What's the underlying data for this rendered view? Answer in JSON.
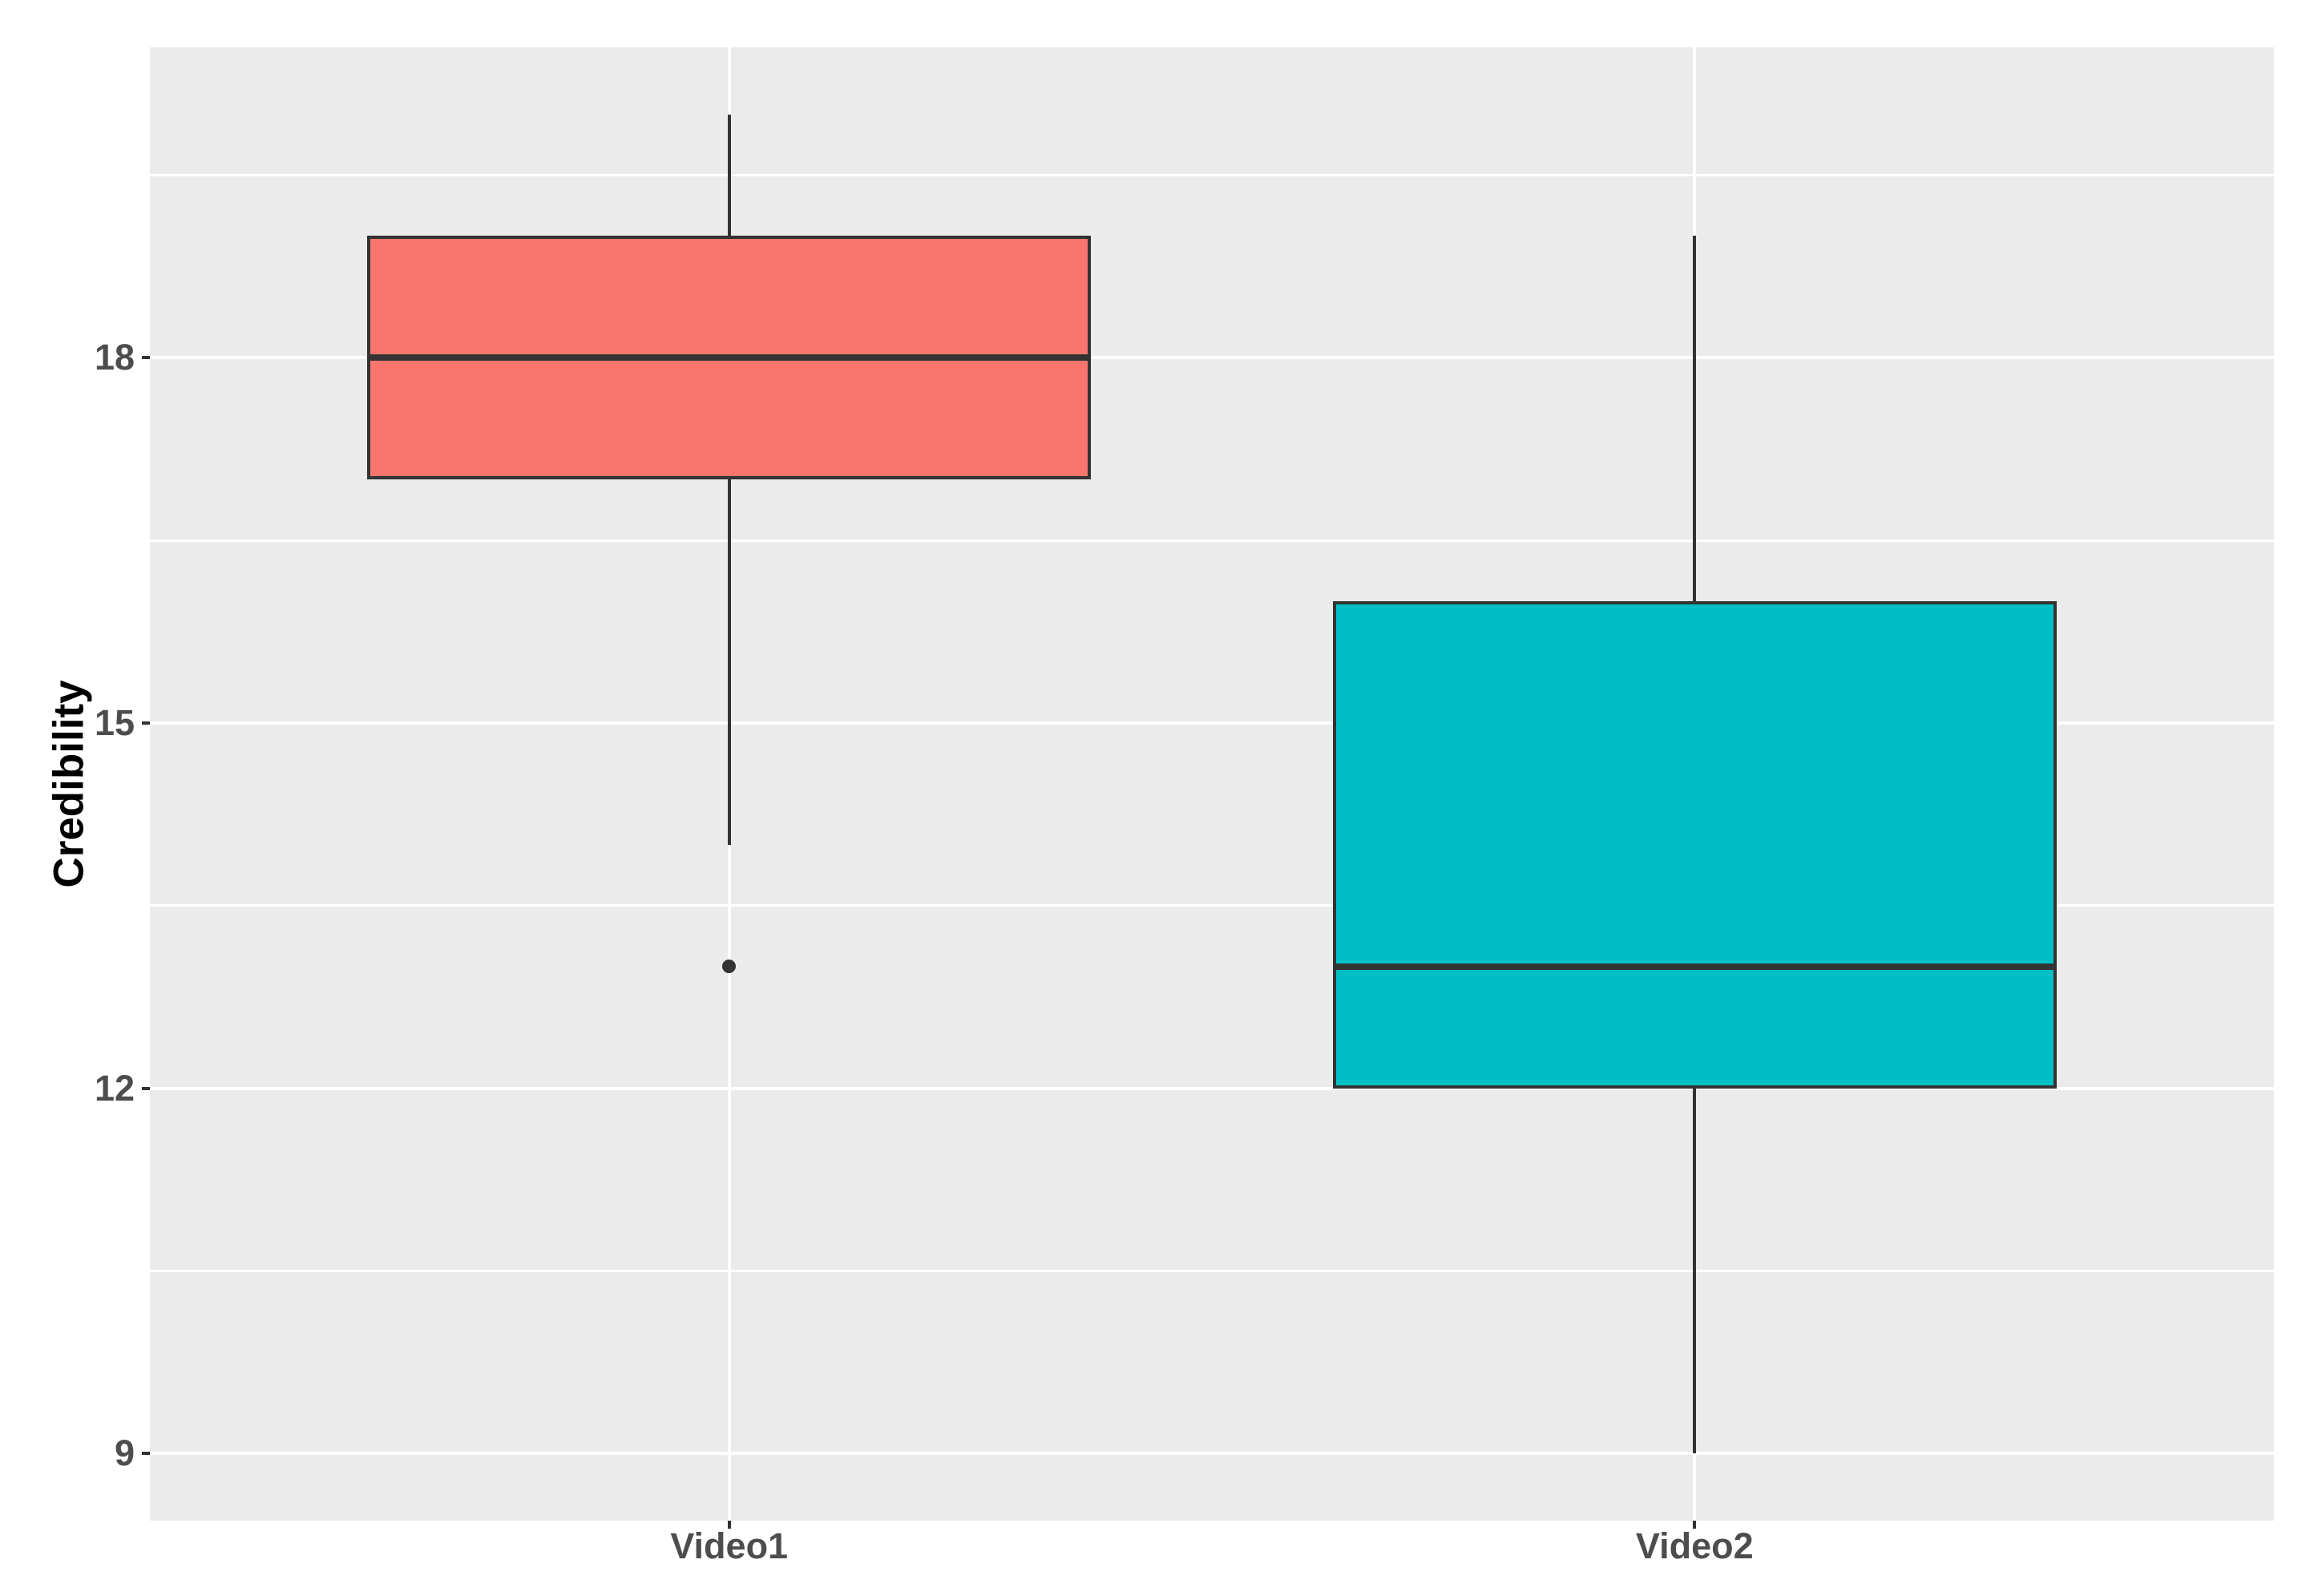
{
  "chart_data": {
    "type": "boxplot",
    "title": "",
    "xlabel": "",
    "ylabel": "Credibility",
    "categories": [
      "Video1",
      "Video2"
    ],
    "series": [
      {
        "name": "Video1",
        "min": 14,
        "q1": 17,
        "median": 18,
        "q3": 19,
        "max": 20,
        "outliers": [
          13
        ],
        "fill": "#F8766D"
      },
      {
        "name": "Video2",
        "min": 9,
        "q1": 12,
        "median": 13,
        "q3": 16,
        "max": 19,
        "outliers": [],
        "fill": "#00BFC4"
      }
    ],
    "y_ticks": [
      9,
      12,
      15,
      18
    ],
    "y_minor_ticks": [
      10.5,
      13.5,
      16.5,
      19.5
    ],
    "ylim": [
      8.45,
      20.55
    ],
    "grid": true,
    "legend_position": "none",
    "colors": {
      "panel_background": "#EBEBEB",
      "gridline": "#FFFFFF",
      "box_border": "#333333",
      "axis_text": "#4D4D4D",
      "axis_title": "#000000"
    }
  }
}
